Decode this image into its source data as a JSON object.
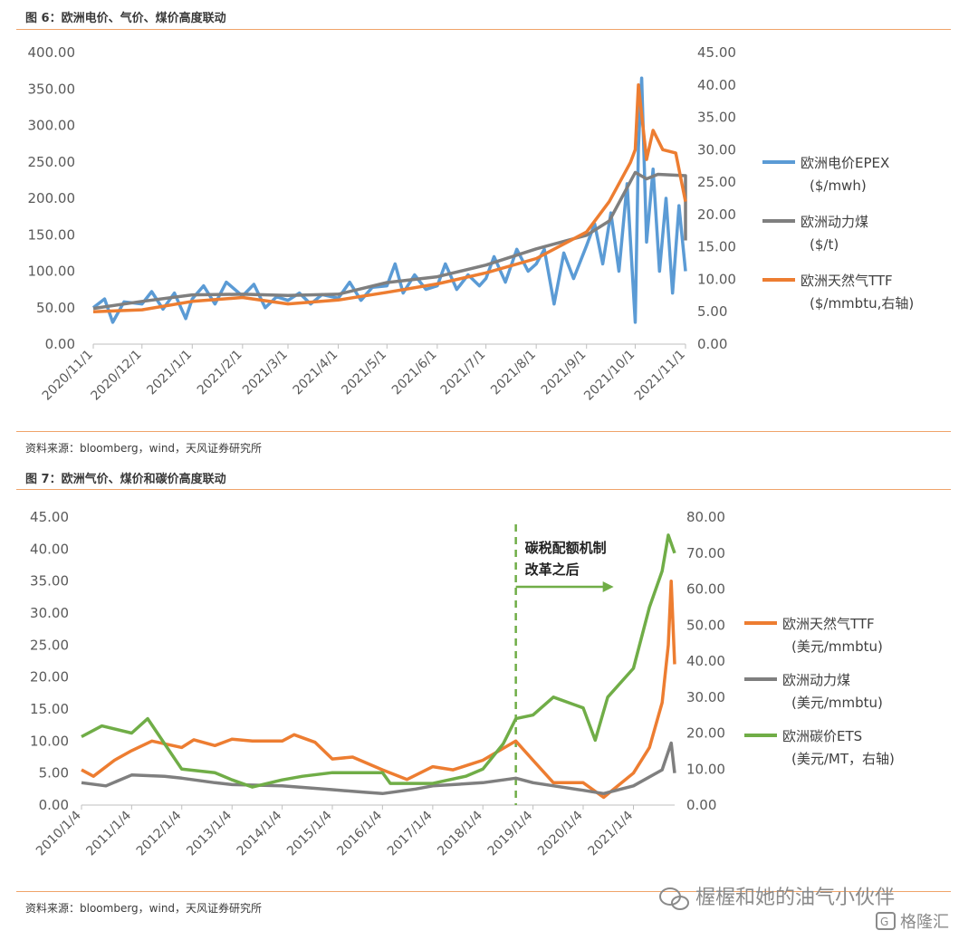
{
  "figures": {
    "fig6": {
      "title": "图 6：欧洲电价、气价、煤价高度联动",
      "source": "资料来源：bloomberg，wind，天风证券研究所"
    },
    "fig7": {
      "title": "图 7：欧洲气价、煤价和碳价高度联动",
      "source": "资料来源：bloomberg，wind，天风证券研究所",
      "annotation_line1": "碳税配额机制",
      "annotation_line2": "改革之后"
    }
  },
  "watermark": {
    "text": "楃楃和她的油气小伙伴",
    "logo": "格隆汇"
  },
  "colors": {
    "blue": "#5b9bd5",
    "gray": "#7f7f7f",
    "orange": "#ed7d31",
    "green": "#70ad47",
    "axis": "#bfbfbf",
    "rule": "#f0a46a"
  },
  "chart_data": [
    {
      "type": "line",
      "x": [
        "2020/11/1",
        "2020/12/1",
        "2021/1/1",
        "2021/2/1",
        "2021/3/1",
        "2021/4/1",
        "2021/5/1",
        "2021/6/1",
        "2021/7/1",
        "2021/8/1",
        "2021/9/1",
        "2021/10/1",
        "2021/11/1"
      ],
      "xlim": [
        "2020/11/1",
        "2021/11/1"
      ],
      "ylim_left": [
        0,
        400
      ],
      "yticks_left": [
        "0.00",
        "50.00",
        "100.00",
        "150.00",
        "200.00",
        "250.00",
        "300.00",
        "350.00",
        "400.00"
      ],
      "ylim_right": [
        0,
        45
      ],
      "yticks_right": [
        "0.00",
        "5.00",
        "10.00",
        "15.00",
        "20.00",
        "25.00",
        "30.00",
        "35.00",
        "40.00",
        "45.00"
      ],
      "legend_position": "right",
      "series": [
        {
          "name": "欧洲电价EPEX",
          "unit": "($/mwh)",
          "axis": "left",
          "color": "#5b9bd5",
          "points": [
            [
              "2020/11/1",
              50
            ],
            [
              "2020/11/8",
              62
            ],
            [
              "2020/11/13",
              30
            ],
            [
              "2020/11/20",
              58
            ],
            [
              "2020/12/1",
              55
            ],
            [
              "2020/12/7",
              72
            ],
            [
              "2020/12/14",
              48
            ],
            [
              "2020/12/21",
              70
            ],
            [
              "2020/12/28",
              35
            ],
            [
              "2021/1/1",
              62
            ],
            [
              "2021/1/8",
              80
            ],
            [
              "2021/1/15",
              55
            ],
            [
              "2021/1/22",
              85
            ],
            [
              "2021/2/1",
              66
            ],
            [
              "2021/2/8",
              82
            ],
            [
              "2021/2/15",
              50
            ],
            [
              "2021/2/22",
              65
            ],
            [
              "2021/3/1",
              60
            ],
            [
              "2021/3/8",
              70
            ],
            [
              "2021/3/15",
              55
            ],
            [
              "2021/3/22",
              68
            ],
            [
              "2021/4/1",
              63
            ],
            [
              "2021/4/8",
              85
            ],
            [
              "2021/4/15",
              60
            ],
            [
              "2021/4/22",
              78
            ],
            [
              "2021/5/1",
              80
            ],
            [
              "2021/5/6",
              110
            ],
            [
              "2021/5/11",
              70
            ],
            [
              "2021/5/18",
              95
            ],
            [
              "2021/5/25",
              75
            ],
            [
              "2021/6/1",
              80
            ],
            [
              "2021/6/6",
              110
            ],
            [
              "2021/6/13",
              75
            ],
            [
              "2021/6/20",
              95
            ],
            [
              "2021/6/27",
              80
            ],
            [
              "2021/7/1",
              90
            ],
            [
              "2021/7/6",
              120
            ],
            [
              "2021/7/13",
              85
            ],
            [
              "2021/7/20",
              130
            ],
            [
              "2021/7/27",
              100
            ],
            [
              "2021/8/1",
              110
            ],
            [
              "2021/8/6",
              130
            ],
            [
              "2021/8/12",
              55
            ],
            [
              "2021/8/18",
              125
            ],
            [
              "2021/8/24",
              90
            ],
            [
              "2021/9/1",
              135
            ],
            [
              "2021/9/6",
              165
            ],
            [
              "2021/9/11",
              110
            ],
            [
              "2021/9/16",
              180
            ],
            [
              "2021/9/21",
              100
            ],
            [
              "2021/9/26",
              220
            ],
            [
              "2021/10/1",
              30
            ],
            [
              "2021/10/3",
              270
            ],
            [
              "2021/10/5",
              365
            ],
            [
              "2021/10/8",
              140
            ],
            [
              "2021/10/12",
              240
            ],
            [
              "2021/10/16",
              100
            ],
            [
              "2021/10/20",
              200
            ],
            [
              "2021/10/24",
              70
            ],
            [
              "2021/10/28",
              190
            ],
            [
              "2021/11/1",
              100
            ]
          ]
        },
        {
          "name": "欧洲动力煤",
          "unit": "($/t)",
          "axis": "right",
          "color": "#7f7f7f",
          "points": [
            [
              "2020/11/1",
              5.5
            ],
            [
              "2020/12/1",
              6.6
            ],
            [
              "2021/1/1",
              7.6
            ],
            [
              "2021/2/1",
              7.7
            ],
            [
              "2021/3/1",
              7.5
            ],
            [
              "2021/4/1",
              7.7
            ],
            [
              "2021/5/1",
              9.5
            ],
            [
              "2021/6/1",
              10.4
            ],
            [
              "2021/7/1",
              12.2
            ],
            [
              "2021/8/1",
              14.7
            ],
            [
              "2021/9/1",
              16.8
            ],
            [
              "2021/9/15",
              19.0
            ],
            [
              "2021/10/1",
              26.5
            ],
            [
              "2021/10/8",
              25.5
            ],
            [
              "2021/10/15",
              26.2
            ],
            [
              "2021/11/1",
              26.0
            ],
            [
              "2021/11/1",
              16.0
            ]
          ]
        },
        {
          "name": "欧洲天然气TTF",
          "unit": "($/mmbtu,右轴)",
          "axis": "right",
          "color": "#ed7d31",
          "points": [
            [
              "2020/11/1",
              5.0
            ],
            [
              "2020/12/1",
              5.3
            ],
            [
              "2021/1/1",
              6.6
            ],
            [
              "2021/2/1",
              7.2
            ],
            [
              "2021/3/1",
              6.2
            ],
            [
              "2021/4/1",
              6.8
            ],
            [
              "2021/5/1",
              8.0
            ],
            [
              "2021/6/1",
              9.3
            ],
            [
              "2021/7/1",
              11.0
            ],
            [
              "2021/8/1",
              13.2
            ],
            [
              "2021/9/1",
              17.3
            ],
            [
              "2021/9/15",
              22.0
            ],
            [
              "2021/9/28",
              28.0
            ],
            [
              "2021/10/1",
              30.0
            ],
            [
              "2021/10/3",
              40.0
            ],
            [
              "2021/10/8",
              28.5
            ],
            [
              "2021/10/12",
              33.0
            ],
            [
              "2021/10/18",
              30.0
            ],
            [
              "2021/10/26",
              29.5
            ],
            [
              "2021/11/1",
              22.0
            ]
          ]
        }
      ]
    },
    {
      "type": "line",
      "x": [
        "2010/1/4",
        "2011/1/4",
        "2012/1/4",
        "2013/1/4",
        "2014/1/4",
        "2015/1/4",
        "2016/1/4",
        "2017/1/4",
        "2018/1/4",
        "2019/1/4",
        "2020/1/4",
        "2021/1/4"
      ],
      "xlim": [
        "2010/1/4",
        "2021/10/31"
      ],
      "ylim_left": [
        0,
        45
      ],
      "yticks_left": [
        "0.00",
        "5.00",
        "10.00",
        "15.00",
        "20.00",
        "25.00",
        "30.00",
        "35.00",
        "40.00",
        "45.00"
      ],
      "ylim_right": [
        0,
        80
      ],
      "yticks_right": [
        "0.00",
        "10.00",
        "20.00",
        "30.00",
        "40.00",
        "50.00",
        "60.00",
        "70.00",
        "80.00"
      ],
      "vline": "2018/9/1",
      "legend_position": "right",
      "series": [
        {
          "name": "欧洲天然气TTF",
          "unit": "(美元/mmbtu)",
          "axis": "left",
          "color": "#ed7d31",
          "points": [
            [
              "2010/1/4",
              5.5
            ],
            [
              "2010/4/1",
              4.5
            ],
            [
              "2010/9/1",
              7.0
            ],
            [
              "2011/1/4",
              8.5
            ],
            [
              "2011/6/1",
              10.0
            ],
            [
              "2012/1/4",
              9.0
            ],
            [
              "2012/4/1",
              10.2
            ],
            [
              "2012/9/1",
              9.3
            ],
            [
              "2013/1/4",
              10.3
            ],
            [
              "2013/6/1",
              10.0
            ],
            [
              "2014/1/4",
              10.0
            ],
            [
              "2014/4/1",
              11.0
            ],
            [
              "2014/9/1",
              9.8
            ],
            [
              "2015/1/4",
              7.2
            ],
            [
              "2015/6/1",
              7.5
            ],
            [
              "2016/1/4",
              5.5
            ],
            [
              "2016/7/1",
              4.0
            ],
            [
              "2017/1/4",
              6.0
            ],
            [
              "2017/6/1",
              5.5
            ],
            [
              "2018/1/4",
              7.0
            ],
            [
              "2018/9/1",
              10.0
            ],
            [
              "2019/1/4",
              7.0
            ],
            [
              "2019/6/1",
              3.5
            ],
            [
              "2020/1/4",
              3.5
            ],
            [
              "2020/6/1",
              1.2
            ],
            [
              "2021/1/4",
              5.0
            ],
            [
              "2021/5/1",
              9.0
            ],
            [
              "2021/8/1",
              16.0
            ],
            [
              "2021/9/15",
              25.0
            ],
            [
              "2021/10/6",
              35.0
            ],
            [
              "2021/10/31",
              22.0
            ]
          ]
        },
        {
          "name": "欧洲动力煤",
          "unit": "(美元/mmbtu)",
          "axis": "left",
          "color": "#7f7f7f",
          "points": [
            [
              "2010/1/4",
              3.5
            ],
            [
              "2010/7/1",
              3.0
            ],
            [
              "2011/1/4",
              4.7
            ],
            [
              "2011/9/1",
              4.5
            ],
            [
              "2012/1/4",
              4.2
            ],
            [
              "2012/9/1",
              3.5
            ],
            [
              "2013/1/4",
              3.2
            ],
            [
              "2014/1/4",
              3.0
            ],
            [
              "2015/1/4",
              2.4
            ],
            [
              "2015/9/1",
              2.0
            ],
            [
              "2016/1/4",
              1.8
            ],
            [
              "2016/9/1",
              2.5
            ],
            [
              "2017/1/4",
              3.0
            ],
            [
              "2018/1/4",
              3.5
            ],
            [
              "2018/9/1",
              4.2
            ],
            [
              "2019/1/4",
              3.5
            ],
            [
              "2020/1/4",
              2.3
            ],
            [
              "2020/6/1",
              1.8
            ],
            [
              "2021/1/4",
              3.0
            ],
            [
              "2021/8/1",
              5.5
            ],
            [
              "2021/10/6",
              9.7
            ],
            [
              "2021/10/31",
              5.0
            ]
          ]
        },
        {
          "name": "欧洲碳价ETS",
          "unit": "(美元/MT，右轴)",
          "axis": "right",
          "color": "#70ad47",
          "points": [
            [
              "2010/1/4",
              19
            ],
            [
              "2010/6/1",
              22
            ],
            [
              "2011/1/4",
              20
            ],
            [
              "2011/5/1",
              24
            ],
            [
              "2011/9/1",
              17
            ],
            [
              "2012/1/4",
              10
            ],
            [
              "2012/9/1",
              9
            ],
            [
              "2013/1/4",
              7
            ],
            [
              "2013/6/1",
              5
            ],
            [
              "2014/1/4",
              7
            ],
            [
              "2014/6/1",
              8
            ],
            [
              "2015/1/4",
              9
            ],
            [
              "2015/6/1",
              9
            ],
            [
              "2016/1/4",
              9
            ],
            [
              "2016/3/1",
              6
            ],
            [
              "2016/9/1",
              6
            ],
            [
              "2017/1/4",
              6
            ],
            [
              "2017/9/1",
              8
            ],
            [
              "2018/1/4",
              10
            ],
            [
              "2018/6/1",
              17
            ],
            [
              "2018/9/1",
              24
            ],
            [
              "2019/1/4",
              25
            ],
            [
              "2019/6/1",
              30
            ],
            [
              "2020/1/4",
              27
            ],
            [
              "2020/4/1",
              18
            ],
            [
              "2020/7/1",
              30
            ],
            [
              "2021/1/4",
              38
            ],
            [
              "2021/5/1",
              55
            ],
            [
              "2021/8/1",
              65
            ],
            [
              "2021/9/15",
              75
            ],
            [
              "2021/10/31",
              70
            ]
          ]
        }
      ]
    }
  ]
}
